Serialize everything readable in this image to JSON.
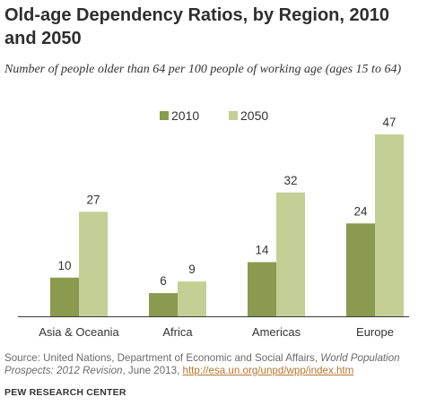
{
  "colors": {
    "series_2010": "#8a9a4e",
    "series_2050": "#c4cf95",
    "axis": "#3a3a3a",
    "label_text": "#333333",
    "link": "#b5762d"
  },
  "header": {
    "title": "Old-age Dependency Ratios, by Region, 2010 and 2050",
    "subtitle": "Number of people older than 64 per 100 people of working age (ages 15 to 64)"
  },
  "chart_data": {
    "type": "bar",
    "title": "Old-age Dependency Ratios, by Region, 2010 and 2050",
    "subtitle": "Number of people older than 64 per 100 people of working age (ages 15 to 64)",
    "categories": [
      "Asia & Oceania",
      "Africa",
      "Americas",
      "Europe"
    ],
    "series": [
      {
        "name": "2010",
        "values": [
          10,
          6,
          14,
          24
        ]
      },
      {
        "name": "2050",
        "values": [
          27,
          9,
          32,
          47
        ]
      }
    ],
    "xlabel": "",
    "ylabel": "",
    "ylim": [
      0,
      47
    ],
    "grid": false,
    "legend": "top-center",
    "data_labels": true
  },
  "footer": {
    "source_prefix": "Source: United Nations, Department of Economic and Social Affairs, ",
    "source_title": "World Population Prospects: 2012 Revision",
    "source_middle": ", June 2013, ",
    "source_link": "http://esa.un.org/unpd/wpp/index.htm",
    "organization": "PEW RESEARCH CENTER"
  }
}
